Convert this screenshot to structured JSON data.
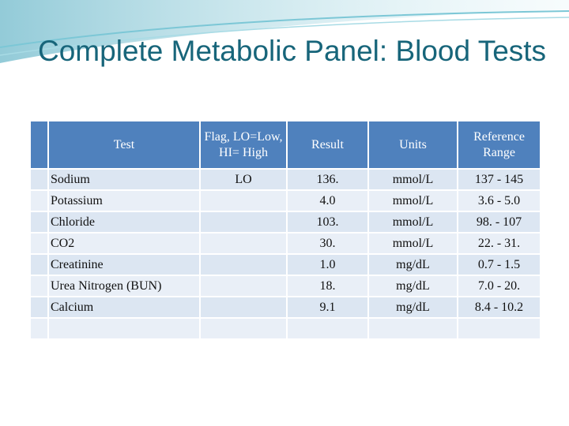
{
  "title": "Complete Metabolic Panel: Blood Tests",
  "table": {
    "header": [
      "Test",
      "Flag, LO=Low, HI= High",
      "Result",
      "Units",
      "Reference Range"
    ],
    "rows": [
      [
        "Sodium",
        "LO",
        "136.",
        "mmol/L",
        "137 - 145"
      ],
      [
        "Potassium",
        null,
        "4.0",
        "mmol/L",
        "3.6 - 5.0"
      ],
      [
        "Chloride",
        null,
        "103.",
        "mmol/L",
        "98. - 107"
      ],
      [
        "CO2",
        null,
        "30.",
        "mmol/L",
        "22. - 31."
      ],
      [
        "Creatinine",
        null,
        "1.0",
        "mg/dL",
        "0.7 - 1.5"
      ],
      [
        "Urea Nitrogen (BUN)",
        null,
        "18.",
        "mg/dL",
        "7.0 - 20."
      ],
      [
        "Calcium",
        null,
        "9.1",
        "mg/dL",
        "8.4 - 10.2"
      ]
    ]
  }
}
